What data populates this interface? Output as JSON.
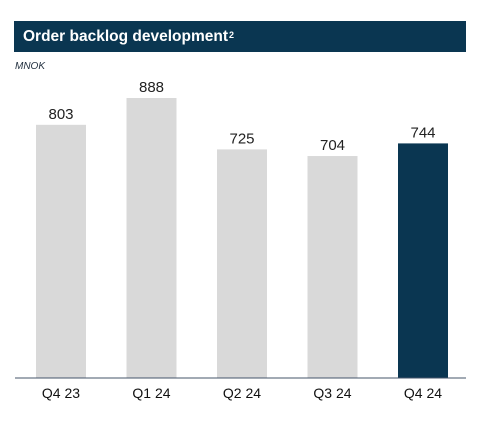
{
  "title": "Order backlog development",
  "title_superscript": "2",
  "unit": "MNOK",
  "colors": {
    "header_bg": "#0a3651",
    "bar_default": "#d9d9d9",
    "bar_highlight": "#0a3651",
    "axis": "#44546a"
  },
  "chart_data": {
    "type": "bar",
    "title": "Order backlog development",
    "ylabel": "MNOK",
    "categories": [
      "Q4 23",
      "Q1 24",
      "Q2 24",
      "Q3 24",
      "Q4 24"
    ],
    "values": [
      803,
      888,
      725,
      704,
      744
    ],
    "highlight_index": 4,
    "ylim": [
      0,
      1000
    ],
    "grid": false,
    "legend": "none",
    "data_labels": true
  }
}
